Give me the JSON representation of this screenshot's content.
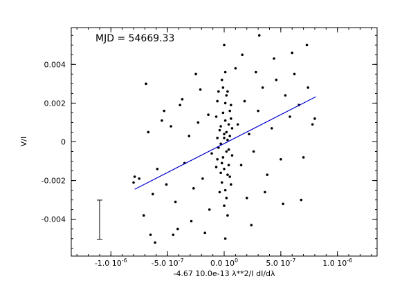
{
  "chart_data": {
    "type": "scatter",
    "title": "",
    "annotation": "MJD = 54669.33",
    "xlabel": "-4.67 10.0e-13 λ**2/I dI/dλ",
    "ylabel": "V/I",
    "xlim": [
      -1.35e-06,
      1.35e-06
    ],
    "ylim": [
      -0.0059,
      0.0059
    ],
    "x_ticks": [
      {
        "value": -1e-06,
        "label": "-1.0",
        "exp": "10",
        "sup": "-6"
      },
      {
        "value": -5e-07,
        "label": "-5.0",
        "exp": "10",
        "sup": "-7"
      },
      {
        "value": 0.0,
        "label": "0.0",
        "exp": "10",
        "sup": "0"
      },
      {
        "value": 5e-07,
        "label": "5.0",
        "exp": "10",
        "sup": "-7"
      },
      {
        "value": 1e-06,
        "label": "1.0",
        "exp": "10",
        "sup": "-6"
      }
    ],
    "y_ticks": [
      {
        "value": 0.004,
        "label": "0.004"
      },
      {
        "value": 0.002,
        "label": "0.002"
      },
      {
        "value": 0.0,
        "label": "0"
      },
      {
        "value": -0.002,
        "label": "-0.002"
      },
      {
        "value": -0.004,
        "label": "-0.004"
      }
    ],
    "fit_line": {
      "x": [
        -7.9e-07,
        8.1e-07
      ],
      "y": [
        -0.00245,
        0.00233
      ],
      "color": "#0000cc"
    },
    "error_bar": {
      "x": -1.1e-06,
      "y_low": -0.00503,
      "y_high": -0.00301
    },
    "grid": false,
    "point_color": "#000000",
    "points": [
      [
        0.0,
        0.0002
      ],
      [
        2e-08,
        -0.0005
      ],
      [
        -3e-08,
        0.0008
      ],
      [
        4e-08,
        -0.0012
      ],
      [
        -1e-08,
        0.0015
      ],
      [
        5e-08,
        0.0003
      ],
      [
        -6e-08,
        -0.0009
      ],
      [
        1e-08,
        0.0011
      ],
      [
        3e-08,
        -0.0017
      ],
      [
        -4e-08,
        0.0006
      ],
      [
        6e-08,
        0.0019
      ],
      [
        -2e-08,
        -0.0021
      ],
      [
        0.0,
        -0.0014
      ],
      [
        2e-08,
        0.0024
      ],
      [
        -5e-08,
        -0.0003
      ],
      [
        7e-08,
        -0.0007
      ],
      [
        -7e-08,
        0.0013
      ],
      [
        1e-08,
        -0.0025
      ],
      [
        -1e-08,
        0.0028
      ],
      [
        4e-08,
        0.0009
      ],
      [
        -3e-08,
        -0.0016
      ],
      [
        5e-08,
        0.0016
      ],
      [
        2e-08,
        -0.0029
      ],
      [
        -6e-08,
        0.0021
      ],
      [
        3e-08,
        0.0001
      ],
      [
        0.0,
        -0.0033
      ],
      [
        -2e-08,
        0.0032
      ],
      [
        6e-08,
        -0.0022
      ],
      [
        -4e-08,
        -0.0026
      ],
      [
        1e-08,
        0.0036
      ],
      [
        3e-08,
        -0.0038
      ],
      [
        -5e-08,
        0.0026
      ],
      [
        7e-08,
        0.0007
      ],
      [
        -1e-08,
        -0.0008
      ],
      [
        2e-08,
        0.0005
      ],
      [
        -3e-08,
        -0.0001
      ],
      [
        4e-08,
        -0.0004
      ],
      [
        0.0,
        0.0004
      ],
      [
        -7e-08,
        -0.0013
      ],
      [
        5e-08,
        -0.0018
      ],
      [
        1e-08,
        0.002
      ],
      [
        -2e-08,
        -0.0011
      ],
      [
        6e-08,
        0.0012
      ],
      [
        -6e-08,
        0.0002
      ],
      [
        3e-08,
        0.0026
      ],
      [
        1.2e-07,
        0.0009
      ],
      [
        -1.1e-07,
        -0.0006
      ],
      [
        1.5e-07,
        -0.0012
      ],
      [
        -1.4e-07,
        0.0014
      ],
      [
        1.8e-07,
        0.0021
      ],
      [
        -1.9e-07,
        -0.0019
      ],
      [
        2.2e-07,
        0.0004
      ],
      [
        -2.3e-07,
        0.001
      ],
      [
        2.6e-07,
        -0.0005
      ],
      [
        -2.7e-07,
        -0.0024
      ],
      [
        3e-07,
        0.0016
      ],
      [
        -3.1e-07,
        0.0003
      ],
      [
        3.4e-07,
        0.0028
      ],
      [
        -3.5e-07,
        -0.0011
      ],
      [
        3.8e-07,
        -0.0017
      ],
      [
        -3.9e-07,
        0.0019
      ],
      [
        4.2e-07,
        0.0007
      ],
      [
        -4.3e-07,
        -0.0031
      ],
      [
        4.6e-07,
        0.0032
      ],
      [
        -4.7e-07,
        0.0008
      ],
      [
        5e-07,
        -0.0009
      ],
      [
        -5.1e-07,
        -0.0022
      ],
      [
        5.4e-07,
        0.0024
      ],
      [
        -5.5e-07,
        0.0011
      ],
      [
        5.8e-07,
        0.0013
      ],
      [
        -5.9e-07,
        -0.0014
      ],
      [
        6.2e-07,
        0.0035
      ],
      [
        -6.3e-07,
        -0.0027
      ],
      [
        6.6e-07,
        0.0019
      ],
      [
        -6.7e-07,
        0.0005
      ],
      [
        7e-07,
        -0.0008
      ],
      [
        -7.1e-07,
        -0.0038
      ],
      [
        7.4e-07,
        0.0028
      ],
      [
        -7.5e-07,
        -0.0019
      ],
      [
        7.8e-07,
        0.0009
      ],
      [
        -7.9e-07,
        -0.0018
      ],
      [
        1e-07,
        0.0038
      ],
      [
        -1.3e-07,
        -0.0035
      ],
      [
        2e-07,
        -0.0029
      ],
      [
        -2.1e-07,
        0.0027
      ],
      [
        2.8e-07,
        0.0036
      ],
      [
        -2.9e-07,
        -0.0041
      ],
      [
        3.6e-07,
        -0.0026
      ],
      [
        -3.7e-07,
        0.0022
      ],
      [
        4.4e-07,
        0.0043
      ],
      [
        -4.5e-07,
        -0.0048
      ],
      [
        5.2e-07,
        -0.0032
      ],
      [
        -5.3e-07,
        0.0016
      ],
      [
        6e-07,
        0.0046
      ],
      [
        -6.1e-07,
        -0.0052
      ],
      [
        6.8e-07,
        -0.003
      ],
      [
        -6.9e-07,
        0.003
      ],
      [
        0.0,
        0.005
      ],
      [
        1e-08,
        -0.005
      ],
      [
        3.1e-07,
        0.0055
      ],
      [
        7.3e-07,
        0.005
      ],
      [
        -4.1e-07,
        -0.0045
      ],
      [
        -6.5e-07,
        -0.0048
      ],
      [
        -8e-07,
        -0.0021
      ],
      [
        8e-07,
        0.0012
      ],
      [
        2.4e-07,
        -0.0043
      ],
      [
        -2.5e-07,
        0.0035
      ],
      [
        1.6e-07,
        0.0045
      ],
      [
        -1.7e-07,
        -0.0047
      ]
    ]
  }
}
